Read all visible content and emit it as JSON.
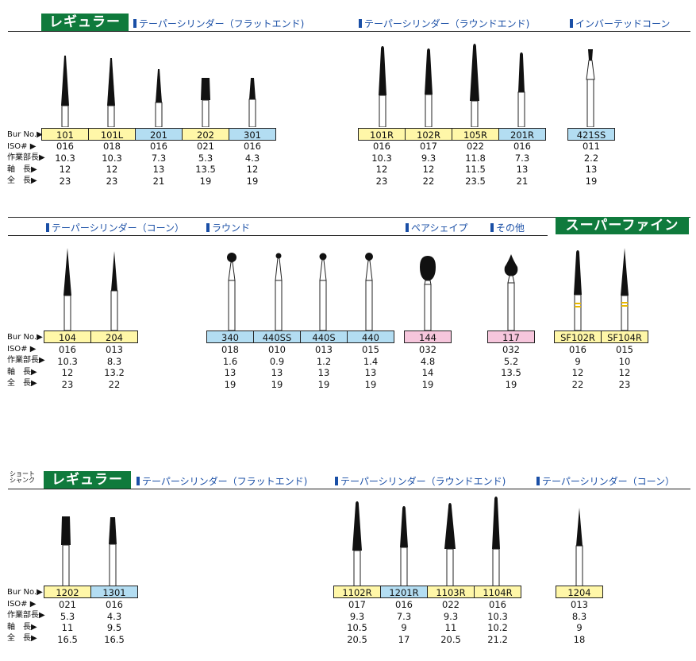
{
  "labels": {
    "bur_no": "Bur No.▶",
    "iso": "ISO#  ▶",
    "work": "作業部長▶",
    "shaft": "軸　長▶",
    "total": "全　長▶"
  },
  "sec1": {
    "badge": "レギュラー",
    "cats": [
      "テーパーシリンダー（フラットエンド)",
      "テーパーシリンダー（ラウンドエンド)",
      "インバーテッドコーン"
    ],
    "burs": [
      {
        "no": "101",
        "iso": "016",
        "work": "10.3",
        "shaft": "12",
        "total": "23",
        "color": "y"
      },
      {
        "no": "101L",
        "iso": "018",
        "work": "10.3",
        "shaft": "12",
        "total": "23",
        "color": "y"
      },
      {
        "no": "201",
        "iso": "016",
        "work": "7.3",
        "shaft": "13",
        "total": "21",
        "color": "b"
      },
      {
        "no": "202",
        "iso": "021",
        "work": "5.3",
        "shaft": "13.5",
        "total": "19",
        "color": "y"
      },
      {
        "no": "301",
        "iso": "016",
        "work": "4.3",
        "shaft": "12",
        "total": "19",
        "color": "b"
      },
      {
        "no": "101R",
        "iso": "016",
        "work": "10.3",
        "shaft": "12",
        "total": "23",
        "color": "y"
      },
      {
        "no": "102R",
        "iso": "017",
        "work": "9.3",
        "shaft": "12",
        "total": "22",
        "color": "y"
      },
      {
        "no": "105R",
        "iso": "022",
        "work": "11.8",
        "shaft": "11.5",
        "total": "23.5",
        "color": "y"
      },
      {
        "no": "201R",
        "iso": "016",
        "work": "7.3",
        "shaft": "13",
        "total": "21",
        "color": "b"
      },
      {
        "no": "421SS",
        "iso": "011",
        "work": "2.2",
        "shaft": "13",
        "total": "19",
        "color": "b"
      }
    ]
  },
  "sec2": {
    "cats": [
      "テーパーシリンダー（コーン）",
      "ラウンド",
      "ペアシェイプ",
      "その他"
    ],
    "badge": "スーパーファイン",
    "burs": [
      {
        "no": "104",
        "iso": "016",
        "work": "10.3",
        "shaft": "12",
        "total": "23",
        "color": "y"
      },
      {
        "no": "204",
        "iso": "013",
        "work": "8.3",
        "shaft": "13.2",
        "total": "22",
        "color": "y"
      },
      {
        "no": "340",
        "iso": "018",
        "work": "1.6",
        "shaft": "13",
        "total": "19",
        "color": "b"
      },
      {
        "no": "440SS",
        "iso": "010",
        "work": "0.9",
        "shaft": "13",
        "total": "19",
        "color": "b"
      },
      {
        "no": "440S",
        "iso": "013",
        "work": "1.2",
        "shaft": "13",
        "total": "19",
        "color": "b"
      },
      {
        "no": "440",
        "iso": "015",
        "work": "1.4",
        "shaft": "13",
        "total": "19",
        "color": "b"
      },
      {
        "no": "144",
        "iso": "032",
        "work": "4.8",
        "shaft": "14",
        "total": "19",
        "color": "p"
      },
      {
        "no": "117",
        "iso": "032",
        "work": "5.2",
        "shaft": "13.5",
        "total": "19",
        "color": "p"
      },
      {
        "no": "SF102R",
        "iso": "016",
        "work": "9",
        "shaft": "12",
        "total": "22",
        "color": "y"
      },
      {
        "no": "SF104R",
        "iso": "015",
        "work": "10",
        "shaft": "12",
        "total": "23",
        "color": "y"
      }
    ]
  },
  "sec3": {
    "short_tag_1": "ショート",
    "short_tag_2": "シャンク",
    "badge": "レギュラー",
    "cats": [
      "テーパーシリンダー（フラットエンド)",
      "テーパーシリンダー（ラウンドエンド)",
      "テーパーシリンダー（コーン）"
    ],
    "burs": [
      {
        "no": "1202",
        "iso": "021",
        "work": "5.3",
        "shaft": "11",
        "total": "16.5",
        "color": "y"
      },
      {
        "no": "1301",
        "iso": "016",
        "work": "4.3",
        "shaft": "9.5",
        "total": "16.5",
        "color": "b"
      },
      {
        "no": "1102R",
        "iso": "017",
        "work": "9.3",
        "shaft": "10.5",
        "total": "20.5",
        "color": "y"
      },
      {
        "no": "1201R",
        "iso": "016",
        "work": "7.3",
        "shaft": "9",
        "total": "17",
        "color": "b"
      },
      {
        "no": "1103R",
        "iso": "022",
        "work": "9.3",
        "shaft": "11",
        "total": "20.5",
        "color": "y"
      },
      {
        "no": "1104R",
        "iso": "016",
        "work": "10.3",
        "shaft": "10.2",
        "total": "21.2",
        "color": "y"
      },
      {
        "no": "1204",
        "iso": "013",
        "work": "8.3",
        "shaft": "9",
        "total": "18",
        "color": "y"
      }
    ]
  }
}
